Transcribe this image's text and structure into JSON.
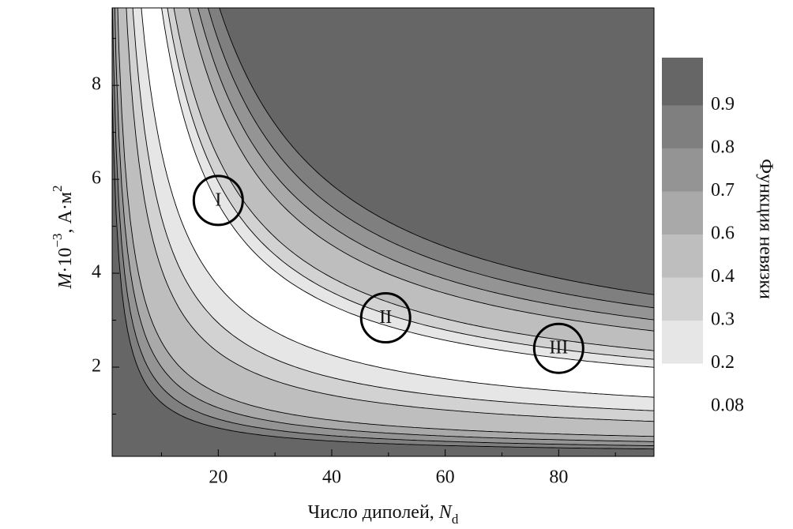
{
  "chart_data": {
    "type": "contour",
    "xlabel": [
      {
        "text": "Число диполей, "
      },
      {
        "text": "N",
        "style": "italic"
      },
      {
        "text": "d",
        "sub": true
      }
    ],
    "ylabel": [
      {
        "text": "M",
        "style": "italic"
      },
      {
        "text": "·10"
      },
      {
        "text": "−3",
        "sup": true
      },
      {
        "text": ", А·м"
      },
      {
        "text": "2",
        "sup": true
      }
    ],
    "xlim": [
      1.3,
      96.8
    ],
    "ylim": [
      0.1,
      9.65
    ],
    "xticks": [
      20,
      40,
      60,
      80
    ],
    "yticks": [
      2,
      4,
      6,
      8
    ],
    "xminorticks": [
      10,
      30,
      50,
      70,
      90
    ],
    "yminorticks": [
      1,
      3,
      5,
      7,
      9
    ],
    "colorbar_label": "Функция невязки",
    "levels": [
      0.08,
      0.2,
      0.3,
      0.4,
      0.6,
      0.7,
      0.8,
      0.9
    ],
    "colors": [
      "#ffffff",
      "#e6e6e6",
      "#d2d2d2",
      "#bebebe",
      "#a9a9a9",
      "#949494",
      "#7f7f7f",
      "#666666"
    ],
    "annotations": [
      {
        "text": "I",
        "x": 20,
        "y": 5.55
      },
      {
        "text": "II",
        "x": 49.5,
        "y": 3.05
      },
      {
        "text": "III",
        "x": 80,
        "y": 2.4
      }
    ]
  }
}
